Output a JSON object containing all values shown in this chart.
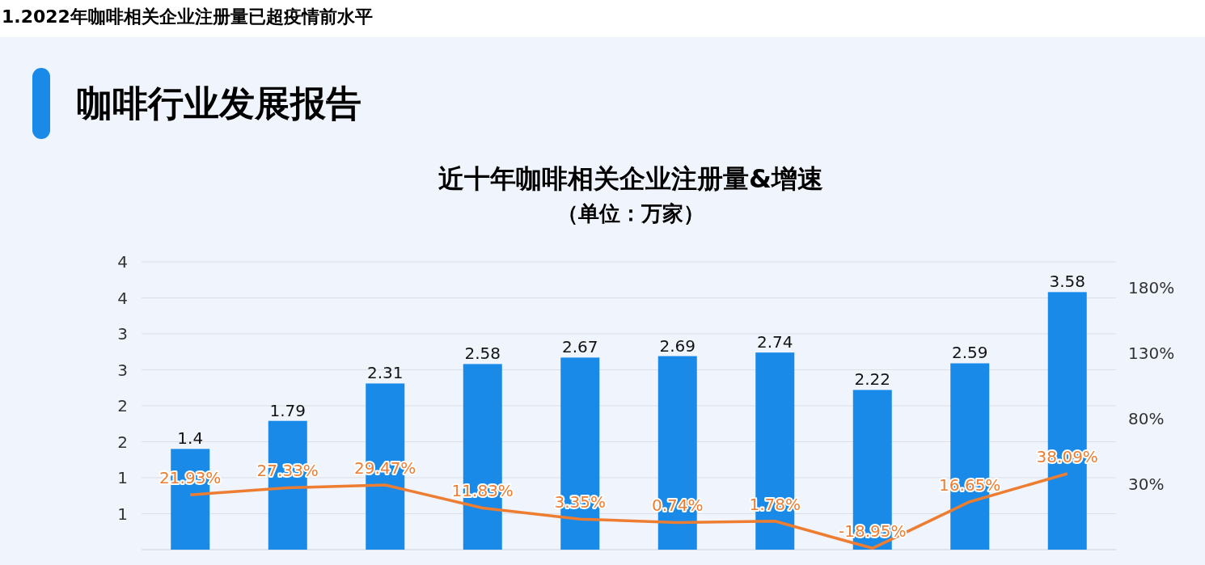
{
  "chart_data": {
    "type": "bar",
    "title": "近十年咖啡相关企业注册量&增速",
    "subtitle": "（单位：万家）",
    "annotations": [
      "1.2022年咖啡相关企业注册量已超疫情前水平",
      "咖啡行业发展报告"
    ],
    "categories": [
      null,
      null,
      null,
      null,
      null,
      null,
      null,
      null,
      null,
      null
    ],
    "series": [
      {
        "color": "#1a8ae8",
        "values": [
          1.4,
          1.79,
          2.31,
          2.58,
          2.67,
          2.69,
          2.74,
          2.22,
          2.59,
          3.58
        ],
        "value_labels": [
          "1.4",
          "1.79",
          "2.31",
          "2.58",
          "2.67",
          "2.69",
          "2.74",
          "2.22",
          "2.59",
          "3.58"
        ]
      },
      {
        "type": "line",
        "axis": "y2",
        "color": "#ed7d31",
        "values": [
          21.93,
          27.33,
          29.47,
          11.83,
          3.35,
          0.74,
          1.78,
          -18.95,
          16.65,
          38.09
        ],
        "value_labels": [
          "21.93%",
          "27.33%",
          "29.47%",
          "11.83%",
          "3.35%",
          "0.74%",
          "1.78%",
          "-18.95%",
          "16.65%",
          "38.09%"
        ]
      }
    ],
    "ylim": [
      0,
      4
    ],
    "yticks": [
      {
        "value": 0.5,
        "label": "1"
      },
      {
        "value": 1,
        "label": "1"
      },
      {
        "value": 1.5,
        "label": "2"
      },
      {
        "value": 2,
        "label": "2"
      },
      {
        "value": 2.5,
        "label": "3"
      },
      {
        "value": 3,
        "label": "3"
      },
      {
        "value": 3.5,
        "label": "4"
      },
      {
        "value": 4,
        "label": "4"
      }
    ],
    "y2lim": [
      -20,
      200
    ],
    "y2ticks": [
      {
        "value": 30,
        "label": "30%"
      },
      {
        "value": 80,
        "label": "80%"
      },
      {
        "value": 130,
        "label": "130%"
      },
      {
        "value": 180,
        "label": "180%"
      }
    ],
    "grid": "y"
  }
}
